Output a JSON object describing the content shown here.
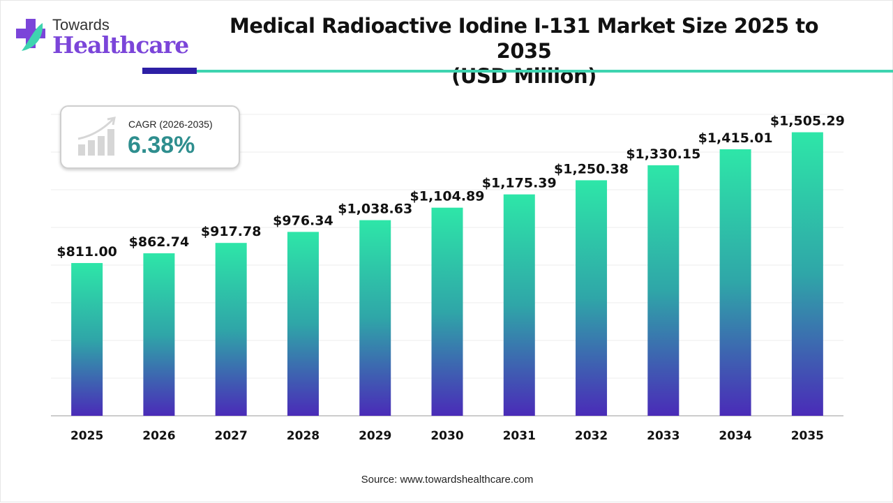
{
  "logo": {
    "line1": "Towards",
    "line2": "Healthcare"
  },
  "colors": {
    "bar_top": "#2ee6a8",
    "bar_bottom": "#4a2bb8",
    "accent_dark": "#2d1fa5",
    "accent_teal": "#3ed4b0",
    "cagr_value": "#2e8e8e"
  },
  "cagr": {
    "label": "CAGR (2026-2035)",
    "value": "6.38%",
    "icon": "growth-chart-icon"
  },
  "source": "Source: www.towardshealthcare.com",
  "chart_data": {
    "type": "bar",
    "title": "Medical Radioactive Iodine I-131 Market Size 2025 to 2035",
    "subtitle": "(USD Million)",
    "xlabel": "",
    "ylabel": "",
    "ylim": [
      0,
      1600
    ],
    "grid": true,
    "categories": [
      "2025",
      "2026",
      "2027",
      "2028",
      "2029",
      "2030",
      "2031",
      "2032",
      "2033",
      "2034",
      "2035"
    ],
    "values": [
      811.0,
      862.74,
      917.78,
      976.34,
      1038.63,
      1104.89,
      1175.39,
      1250.38,
      1330.15,
      1415.01,
      1505.29
    ],
    "labels": [
      "$811.00",
      "$862.74",
      "$917.78",
      "$976.34",
      "$1,038.63",
      "$1,104.89",
      "$1,175.39",
      "$1,250.38",
      "$1,330.15",
      "$1,415.01",
      "$1,505.29"
    ]
  }
}
